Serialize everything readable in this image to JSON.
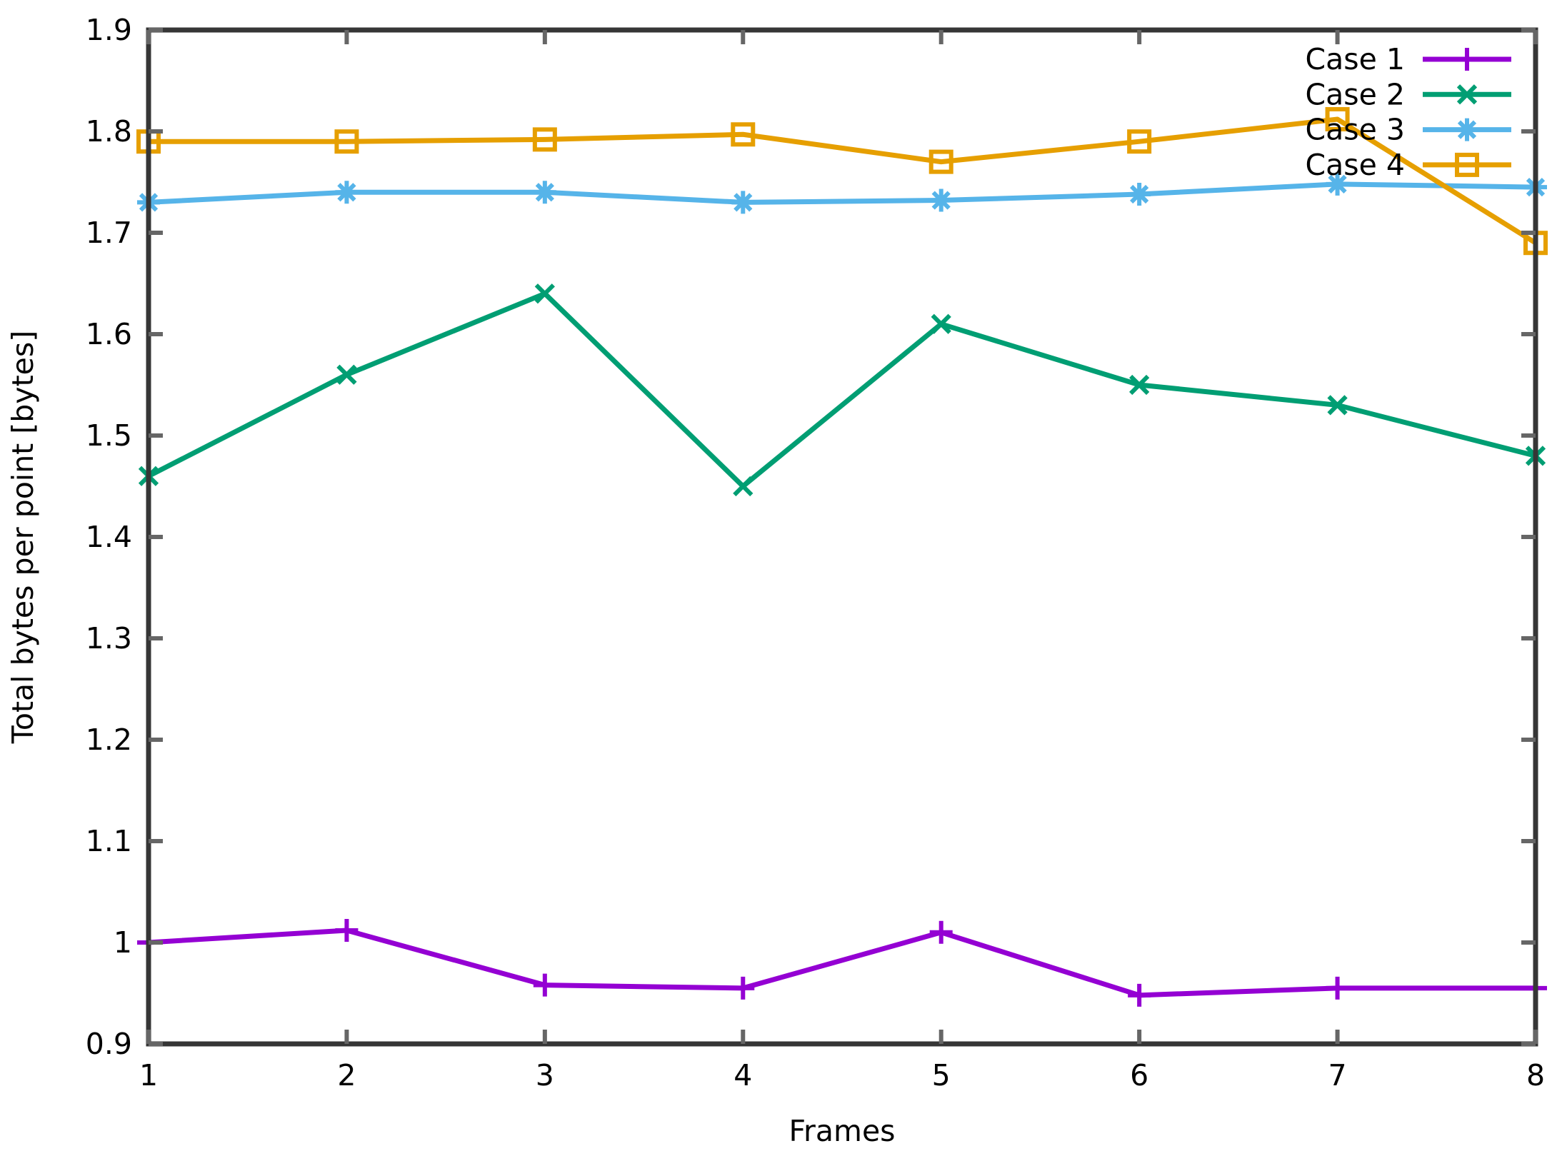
{
  "chart_data": {
    "type": "line",
    "title": "",
    "xlabel": "Frames",
    "ylabel": "Total bytes per point [bytes]",
    "xlim": [
      1,
      8
    ],
    "ylim": [
      0.9,
      1.9
    ],
    "grid": false,
    "legend_position": "top-right-inside",
    "x": [
      1,
      2,
      3,
      4,
      5,
      6,
      7,
      8
    ],
    "xticks": [
      {
        "value": 1,
        "label": "1"
      },
      {
        "value": 2,
        "label": "2"
      },
      {
        "value": 3,
        "label": "3"
      },
      {
        "value": 4,
        "label": "4"
      },
      {
        "value": 5,
        "label": "5"
      },
      {
        "value": 6,
        "label": "6"
      },
      {
        "value": 7,
        "label": "7"
      },
      {
        "value": 8,
        "label": "8"
      }
    ],
    "yticks": [
      {
        "value": 0.9,
        "label": "0.9"
      },
      {
        "value": 1.0,
        "label": "1"
      },
      {
        "value": 1.1,
        "label": "1.1"
      },
      {
        "value": 1.2,
        "label": "1.2"
      },
      {
        "value": 1.3,
        "label": "1.3"
      },
      {
        "value": 1.4,
        "label": "1.4"
      },
      {
        "value": 1.5,
        "label": "1.5"
      },
      {
        "value": 1.6,
        "label": "1.6"
      },
      {
        "value": 1.7,
        "label": "1.7"
      },
      {
        "value": 1.8,
        "label": "1.8"
      },
      {
        "value": 1.9,
        "label": "1.9"
      }
    ],
    "series": [
      {
        "name": "Case 1",
        "color": "#9400d3",
        "marker": "plus",
        "values": [
          1.0,
          1.012,
          0.958,
          0.955,
          1.01,
          0.948,
          0.955,
          0.955
        ]
      },
      {
        "name": "Case 2",
        "color": "#009e73",
        "marker": "cross",
        "values": [
          1.46,
          1.56,
          1.64,
          1.45,
          1.61,
          1.55,
          1.53,
          1.48
        ]
      },
      {
        "name": "Case 3",
        "color": "#56b4e9",
        "marker": "asterisk",
        "values": [
          1.73,
          1.74,
          1.74,
          1.73,
          1.732,
          1.738,
          1.748,
          1.745
        ]
      },
      {
        "name": "Case 4",
        "color": "#e69f00",
        "marker": "square-open",
        "values": [
          1.79,
          1.79,
          1.792,
          1.797,
          1.77,
          1.79,
          1.812,
          1.69
        ]
      }
    ]
  },
  "axis": {
    "border_color": "#363636",
    "tick_color": "#666666",
    "text_color": "#000000"
  }
}
